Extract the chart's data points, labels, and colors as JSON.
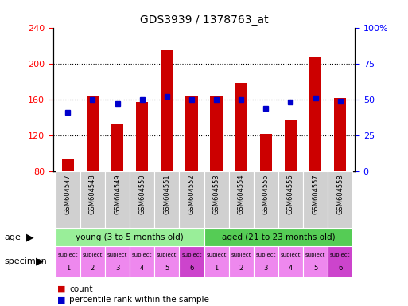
{
  "title": "GDS3939 / 1378763_at",
  "samples": [
    "GSM604547",
    "GSM604548",
    "GSM604549",
    "GSM604550",
    "GSM604551",
    "GSM604552",
    "GSM604553",
    "GSM604554",
    "GSM604555",
    "GSM604556",
    "GSM604557",
    "GSM604558"
  ],
  "counts": [
    93,
    163,
    133,
    157,
    215,
    163,
    163,
    178,
    122,
    137,
    207,
    162
  ],
  "percentiles": [
    41,
    50,
    47,
    50,
    52,
    50,
    50,
    50,
    44,
    48,
    51,
    49
  ],
  "bar_color": "#cc0000",
  "dot_color": "#0000cc",
  "ylim_left": [
    80,
    240
  ],
  "ylim_right": [
    0,
    100
  ],
  "yticks_left": [
    80,
    120,
    160,
    200,
    240
  ],
  "yticks_right": [
    0,
    25,
    50,
    75,
    100
  ],
  "ytick_labels_right": [
    "0",
    "25",
    "50",
    "75",
    "100%"
  ],
  "age_young_label": "young (3 to 5 months old)",
  "age_aged_label": "aged (21 to 23 months old)",
  "age_young_color": "#99ee99",
  "age_aged_color": "#55cc55",
  "specimen_color_light": "#ee88ee",
  "specimen_color_dark": "#cc44cc",
  "legend_count_color": "#cc0000",
  "legend_dot_color": "#0000cc",
  "grid_color": "black",
  "grid_linestyle": "dotted",
  "xticklabel_bg": "#d0d0d0"
}
